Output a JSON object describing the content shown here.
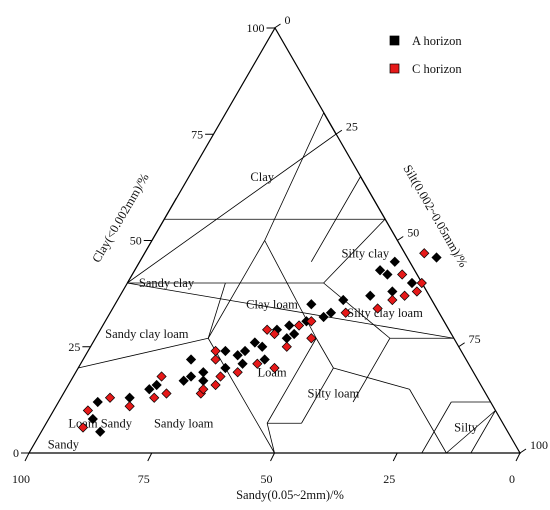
{
  "chart_data": {
    "type": "scatter",
    "subtype": "ternary",
    "axes": {
      "sand": {
        "label": "Sandy(0.05~2mm)/%",
        "ticks": [
          "100",
          "75",
          "50",
          "25",
          "0"
        ]
      },
      "clay": {
        "label": "Clay(<0.002mm)/%",
        "ticks": [
          "0",
          "25",
          "50",
          "75",
          "100"
        ]
      },
      "silt": {
        "label": "Silt(0.002~0.05mm)/%",
        "ticks": [
          "0",
          "25",
          "50",
          "75",
          "100"
        ]
      }
    },
    "zones": [
      {
        "name": "Clay",
        "clay": 65,
        "silt": 15
      },
      {
        "name": "Sandy  clay",
        "clay": 40,
        "silt": 8
      },
      {
        "name": "Silty  clay",
        "clay": 47,
        "silt": 45
      },
      {
        "name": "Clay loam",
        "clay": 35,
        "silt": 32
      },
      {
        "name": "Silty  clay loam",
        "clay": 33,
        "silt": 56
      },
      {
        "name": "Sandy clay loam",
        "clay": 28,
        "silt": 10
      },
      {
        "name": "Loam",
        "clay": 19,
        "silt": 40
      },
      {
        "name": "Silty loam",
        "clay": 14,
        "silt": 55
      },
      {
        "name": "Sandy loam",
        "clay": 7,
        "silt": 28
      },
      {
        "name": "Silty",
        "clay": 6,
        "silt": 86
      },
      {
        "name": "Loam  Sandy",
        "clay": 7,
        "silt": 11
      },
      {
        "name": "Sandy",
        "clay": 2,
        "silt": 6
      }
    ],
    "boundaries": [
      [
        [
          0,
          90
        ],
        [
          10,
          90
        ]
      ],
      [
        [
          10,
          90
        ],
        [
          0,
          85
        ]
      ],
      [
        [
          0,
          85
        ],
        [
          15,
          70
        ]
      ],
      [
        [
          15,
          70
        ],
        [
          20,
          52
        ]
      ],
      [
        [
          20,
          52
        ],
        [
          7,
          52
        ]
      ],
      [
        [
          7,
          52
        ],
        [
          7,
          45
        ]
      ],
      [
        [
          7,
          45
        ],
        [
          27,
          45
        ]
      ],
      [
        [
          20,
          52
        ],
        [
          27,
          45
        ]
      ],
      [
        [
          7,
          45
        ],
        [
          0,
          50
        ]
      ],
      [
        [
          27,
          45
        ],
        [
          50,
          23
        ]
      ],
      [
        [
          0,
          50
        ],
        [
          27,
          23
        ]
      ],
      [
        [
          27,
          23
        ],
        [
          40,
          20
        ]
      ],
      [
        [
          27,
          23
        ],
        [
          50,
          23
        ]
      ],
      [
        [
          50,
          23
        ],
        [
          80,
          20
        ]
      ],
      [
        [
          27,
          23
        ],
        [
          20,
          0
        ]
      ],
      [
        [
          40,
          20
        ],
        [
          40,
          0
        ]
      ],
      [
        [
          40,
          0
        ],
        [
          60,
          0
        ]
      ],
      [
        [
          12,
          60
        ],
        [
          27,
          60
        ]
      ],
      [
        [
          27,
          60
        ],
        [
          40,
          40
        ]
      ],
      [
        [
          27,
          60
        ],
        [
          27,
          73
        ]
      ],
      [
        [
          27,
          73
        ],
        [
          40,
          0
        ]
      ],
      [
        [
          28,
          72
        ],
        [
          65,
          35
        ]
      ],
      [
        [
          45,
          35
        ],
        [
          65,
          35
        ]
      ],
      [
        [
          40,
          0
        ],
        [
          75,
          25
        ]
      ],
      [
        [
          40,
          40
        ],
        [
          55,
          45
        ]
      ],
      [
        [
          55,
          45
        ],
        [
          55,
          0
        ]
      ],
      [
        [
          40,
          40
        ],
        [
          40,
          20
        ]
      ],
      [
        [
          75,
          25
        ],
        [
          80,
          20
        ]
      ],
      [
        [
          12,
          88
        ],
        [
          12,
          80
        ]
      ],
      [
        [
          12,
          80
        ],
        [
          0,
          80
        ]
      ]
    ],
    "series": [
      {
        "name": "A horizon",
        "color": "#000000",
        "points": [
          [
            5,
            12
          ],
          [
            8,
            9
          ],
          [
            12,
            8
          ],
          [
            13,
            14
          ],
          [
            15,
            17
          ],
          [
            16,
            18
          ],
          [
            17,
            23
          ],
          [
            18,
            24
          ],
          [
            17,
            27
          ],
          [
            20,
            30
          ],
          [
            21,
            33
          ],
          [
            22,
            37
          ],
          [
            23,
            31
          ],
          [
            24,
            28
          ],
          [
            25,
            35
          ],
          [
            26,
            33
          ],
          [
            27,
            39
          ],
          [
            28,
            40
          ],
          [
            29,
            36
          ],
          [
            30,
            38
          ],
          [
            31,
            41
          ],
          [
            32,
            44
          ],
          [
            33,
            45
          ],
          [
            35,
            40
          ],
          [
            36,
            46
          ],
          [
            37,
            51
          ],
          [
            38,
            55
          ],
          [
            40,
            58
          ],
          [
            42,
            52
          ],
          [
            43,
            50
          ],
          [
            45,
            52
          ],
          [
            46,
            60
          ],
          [
            22,
            22
          ],
          [
            19,
            26
          ],
          [
            24,
            32
          ]
        ]
      },
      {
        "name": "C horizon",
        "color": "#e61919",
        "points": [
          [
            6,
            8
          ],
          [
            10,
            7
          ],
          [
            11,
            15
          ],
          [
            13,
            19
          ],
          [
            14,
            21
          ],
          [
            14,
            28
          ],
          [
            15,
            28
          ],
          [
            18,
            30
          ],
          [
            19,
            33
          ],
          [
            21,
            36
          ],
          [
            22,
            27
          ],
          [
            24,
            26
          ],
          [
            25,
            40
          ],
          [
            27,
            44
          ],
          [
            28,
            36
          ],
          [
            30,
            40
          ],
          [
            31,
            42
          ],
          [
            33,
            48
          ],
          [
            34,
            54
          ],
          [
            36,
            56
          ],
          [
            37,
            58
          ],
          [
            38,
            60
          ],
          [
            40,
            60
          ],
          [
            42,
            55
          ],
          [
            47,
            57
          ],
          [
            13,
            10
          ],
          [
            16,
            30
          ],
          [
            20,
            40
          ],
          [
            29,
            34
          ],
          [
            18,
            18
          ]
        ]
      }
    ],
    "legend": {
      "position": "top-right"
    },
    "grid": false
  }
}
